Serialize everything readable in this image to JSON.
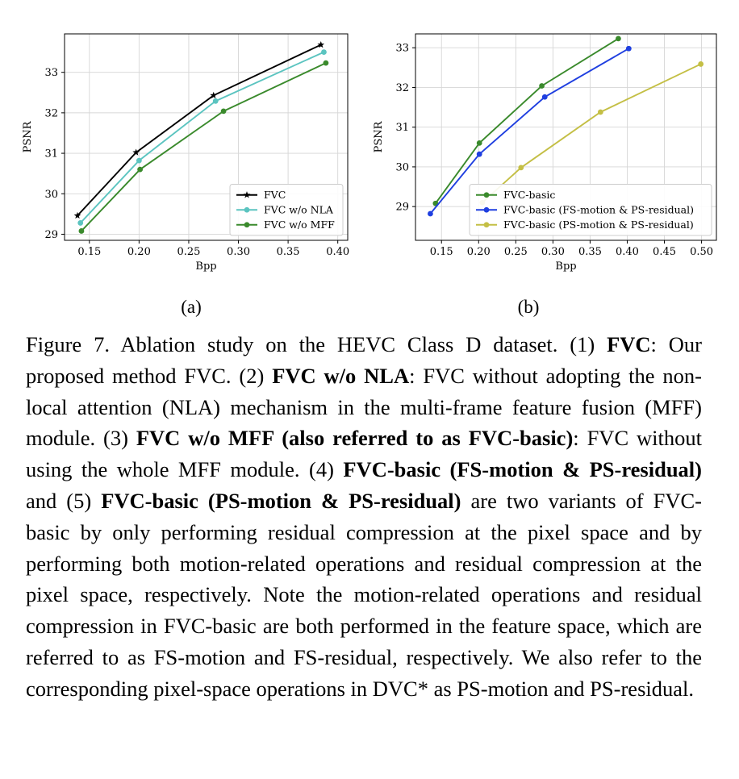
{
  "chart_data": [
    {
      "type": "line",
      "panel_label": "(a)",
      "xlabel": "Bpp",
      "ylabel": "PSNR",
      "xlim": [
        0.125,
        0.41
      ],
      "ylim": [
        28.85,
        33.95
      ],
      "xticks": [
        0.15,
        0.2,
        0.25,
        0.3,
        0.35,
        0.4
      ],
      "xtick_labels": [
        "0.15",
        "0.20",
        "0.25",
        "0.30",
        "0.35",
        "0.40"
      ],
      "yticks": [
        29,
        30,
        31,
        32,
        33
      ],
      "ytick_labels": [
        "29",
        "30",
        "31",
        "32",
        "33"
      ],
      "grid": true,
      "legend_position": "lower-right",
      "series": [
        {
          "name": "FVC",
          "color": "#000000",
          "marker": "star",
          "x": [
            0.138,
            0.197,
            0.275,
            0.383
          ],
          "y": [
            29.46,
            31.02,
            32.43,
            33.68
          ]
        },
        {
          "name": "FVC w/o NLA",
          "color": "#5bc4c0",
          "marker": "circle",
          "x": [
            0.141,
            0.2,
            0.277,
            0.386
          ],
          "y": [
            29.28,
            30.82,
            32.29,
            33.5
          ]
        },
        {
          "name": "FVC w/o MFF",
          "color": "#3a8a2c",
          "marker": "circle",
          "x": [
            0.142,
            0.201,
            0.285,
            0.388
          ],
          "y": [
            29.08,
            30.6,
            32.04,
            33.23
          ]
        }
      ]
    },
    {
      "type": "line",
      "panel_label": "(b)",
      "xlabel": "Bpp",
      "ylabel": "PSNR",
      "xlim": [
        0.115,
        0.52
      ],
      "ylim": [
        28.15,
        33.35
      ],
      "xticks": [
        0.15,
        0.2,
        0.25,
        0.3,
        0.35,
        0.4,
        0.45,
        0.5
      ],
      "xtick_labels": [
        "0.15",
        "0.20",
        "0.25",
        "0.30",
        "0.35",
        "0.40",
        "0.45",
        "0.50"
      ],
      "yticks": [
        29,
        30,
        31,
        32,
        33
      ],
      "ytick_labels": [
        "29",
        "30",
        "31",
        "32",
        "33"
      ],
      "grid": true,
      "legend_position": "lower-right",
      "series": [
        {
          "name": "FVC-basic",
          "color": "#3a8a2c",
          "marker": "circle",
          "x": [
            0.142,
            0.201,
            0.285,
            0.388
          ],
          "y": [
            29.08,
            30.6,
            32.04,
            33.23
          ]
        },
        {
          "name": "FVC-basic (FS-motion & PS-residual)",
          "color": "#1f3fe0",
          "marker": "circle",
          "x": [
            0.135,
            0.201,
            0.289,
            0.402
          ],
          "y": [
            28.82,
            30.32,
            31.76,
            32.98
          ]
        },
        {
          "name": "FVC-basic (PS-motion & PS-residual)",
          "color": "#c4bf45",
          "marker": "circle",
          "x": [
            0.205,
            0.257,
            0.364,
            0.499
          ],
          "y": [
            29.1,
            29.98,
            31.38,
            32.59
          ]
        }
      ]
    }
  ],
  "caption": {
    "t1": "Figure 7. Ablation study on the HEVC Class D dataset. (1) ",
    "b1": "FVC",
    "t2": ": Our proposed method FVC. (2) ",
    "b2": "FVC w/o NLA",
    "t3": ": FVC without adopting the non-local attention (NLA) mechanism in the multi-frame feature fusion (MFF) module.  (3) ",
    "b3": "FVC w/o MFF (also referred to as FVC-basic)",
    "t4": ": FVC without using the whole MFF module.  (4) ",
    "b4": "FVC-basic (FS-motion & PS-residual)",
    "t5": " and (5) ",
    "b5": "FVC-basic (PS-motion & PS-residual)",
    "t6": " are two variants of FVC-basic by only performing residual compression at the pixel space and by performing both motion-related operations and residual compression at the pixel space, respectively.  Note the motion-related operations and residual compression in FVC-basic are both performed in the feature space, which are referred to as FS-motion and FS-residual, respectively.  We also refer to the corresponding pixel-space operations in DVC* as PS-motion and PS-residual."
  }
}
